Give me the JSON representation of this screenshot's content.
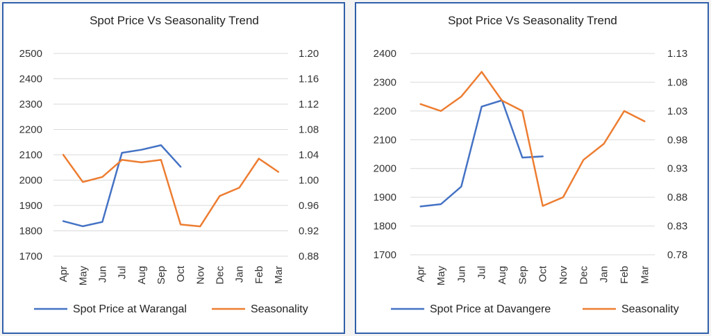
{
  "chart_data": [
    {
      "type": "line",
      "title": "Spot Price Vs Seasonality Trend",
      "categories": [
        "Apr",
        "May",
        "Jun",
        "Jul",
        "Aug",
        "Sep",
        "Oct",
        "Nov",
        "Dec",
        "Jan",
        "Feb",
        "Mar"
      ],
      "y_left": {
        "range": [
          1700,
          2500
        ],
        "ticks": [
          "1700",
          "1800",
          "1900",
          "2000",
          "2100",
          "2200",
          "2300",
          "2400",
          "2500"
        ]
      },
      "y_right": {
        "range": [
          0.88,
          1.2
        ],
        "ticks": [
          "0.88",
          "0.92",
          "0.96",
          "1.00",
          "1.04",
          "1.08",
          "1.12",
          "1.16",
          "1.20"
        ]
      },
      "series": [
        {
          "name": "Spot Price at Warangal",
          "axis": "left",
          "color": "#4472c4",
          "values": [
            1838,
            1818,
            1835,
            2108,
            2120,
            2138,
            2053,
            null,
            null,
            null,
            null,
            null
          ]
        },
        {
          "name": "Seasonality",
          "axis": "right",
          "color": "#ed7d31",
          "values": [
            1.04,
            0.997,
            1.005,
            1.032,
            1.028,
            1.032,
            0.93,
            0.927,
            0.975,
            0.988,
            1.034,
            1.013
          ]
        }
      ],
      "grid": true,
      "legend": "bottom"
    },
    {
      "type": "line",
      "title": "Spot Price Vs Seasonality Trend",
      "categories": [
        "Apr",
        "May",
        "Jun",
        "Jul",
        "Aug",
        "Sep",
        "Oct",
        "Nov",
        "Dec",
        "Jan",
        "Feb",
        "Mar"
      ],
      "y_left": {
        "range": [
          1700,
          2400
        ],
        "ticks": [
          "1700",
          "1800",
          "1900",
          "2000",
          "2100",
          "2200",
          "2300",
          "2400"
        ]
      },
      "y_right": {
        "range": [
          0.78,
          1.13
        ],
        "ticks": [
          "0.78",
          "0.83",
          "0.88",
          "0.93",
          "0.98",
          "1.03",
          "1.08",
          "1.13"
        ]
      },
      "series": [
        {
          "name": "Spot Price at Davangere",
          "axis": "left",
          "color": "#4472c4",
          "values": [
            1868,
            1876,
            1937,
            2215,
            2237,
            2038,
            2042,
            null,
            null,
            null,
            null,
            null
          ]
        },
        {
          "name": "Seasonality",
          "axis": "right",
          "color": "#ed7d31",
          "values": [
            1.042,
            1.03,
            1.055,
            1.098,
            1.048,
            1.03,
            0.865,
            0.88,
            0.945,
            0.973,
            1.03,
            1.012
          ]
        }
      ],
      "grid": true,
      "legend": "bottom"
    }
  ]
}
